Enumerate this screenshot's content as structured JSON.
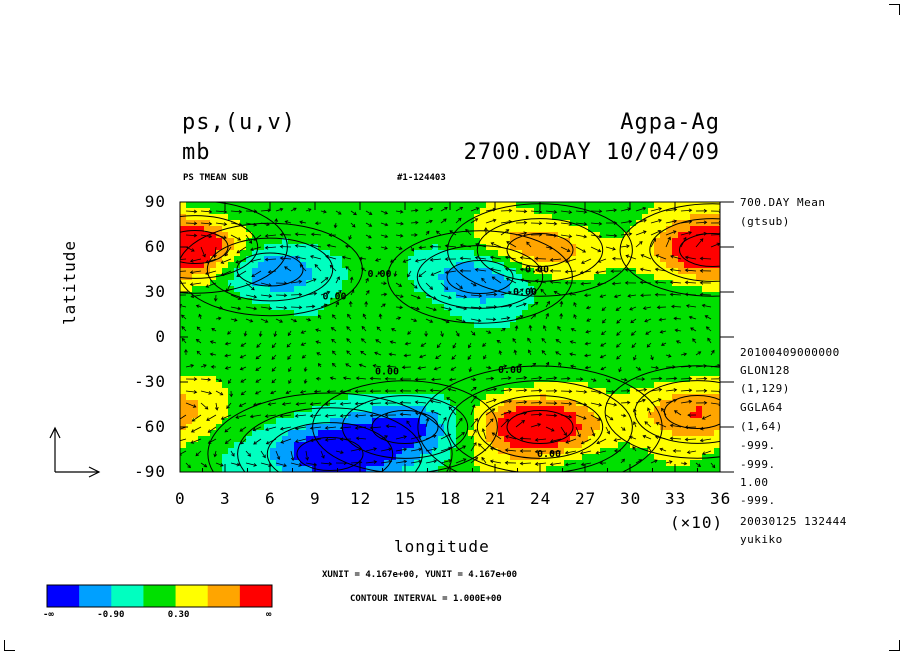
{
  "header": {
    "variable": "ps,(u,v)",
    "unit": "mb",
    "experiment": "Agpa-Ag",
    "time": "2700.0DAY 10/04/09",
    "subtitle": "PS TMEAN SUB",
    "run_id": "#1-124403"
  },
  "side_info": {
    "mean_label": "700.DAY Mean",
    "source": "(gtsub)",
    "date": "20100409000000",
    "xgrid": "GLON128",
    "xrange": "(1,129)",
    "ygrid": "GGLA64",
    "yrange": "(1,64)",
    "undef1": "-999.",
    "undef2": "-999.",
    "factor": "1.00",
    "undef3": "-999.",
    "created": "20030125 132444",
    "user": "yukiko"
  },
  "axes": {
    "xlabel": "longitude",
    "ylabel": "latitude",
    "x_multiplier": "(×10)",
    "x_ticks": [
      "0",
      "3",
      "6",
      "9",
      "12",
      "15",
      "18",
      "21",
      "24",
      "27",
      "30",
      "33",
      "36"
    ],
    "y_ticks": [
      "90",
      "60",
      "30",
      "0",
      "-30",
      "-60",
      "-90"
    ]
  },
  "footer": {
    "units_line": "XUNIT = 4.167e+00, YUNIT = 4.167e+00",
    "contour_line": "CONTOUR INTERVAL = 1.000E+00"
  },
  "colorbar": {
    "colors": [
      "#0000ff",
      "#00a0ff",
      "#00ffc0",
      "#00e000",
      "#ffff00",
      "#ffa500",
      "#ff0000"
    ],
    "labels": [
      "-∞",
      "-0.90",
      "0.30",
      "∞"
    ]
  },
  "contour_labels": [
    "0.00",
    "0.00",
    "0.00",
    "0.00",
    "0.00",
    "0.00",
    "0.00"
  ],
  "chart_data": {
    "type": "heatmap",
    "title": "ps,(u,v)",
    "xlabel": "longitude",
    "ylabel": "latitude",
    "xlim": [
      0,
      360
    ],
    "ylim": [
      -90,
      90
    ],
    "x_tick_values": [
      0,
      30,
      60,
      90,
      120,
      150,
      180,
      210,
      240,
      270,
      300,
      330,
      360
    ],
    "y_tick_values": [
      90,
      60,
      30,
      0,
      -30,
      -60,
      -90
    ],
    "color_levels": [
      -0.9,
      -0.3,
      0.3,
      0.9
    ],
    "contour_interval": 1.0,
    "features": [
      {
        "kind": "high",
        "lon": 10,
        "lat": 60,
        "level": 1.5
      },
      {
        "kind": "high",
        "lon": 240,
        "lat": 58,
        "level": 1.5
      },
      {
        "kind": "high",
        "lon": 355,
        "lat": 58,
        "level": 1.5
      },
      {
        "kind": "high",
        "lon": 240,
        "lat": -60,
        "level": 2.5
      },
      {
        "kind": "high",
        "lon": 345,
        "lat": -50,
        "level": 1.5
      },
      {
        "kind": "low",
        "lon": 60,
        "lat": 45,
        "level": -1.5
      },
      {
        "kind": "low",
        "lon": 200,
        "lat": 40,
        "level": -1.5
      },
      {
        "kind": "low",
        "lon": 150,
        "lat": -60,
        "level": -1.5
      },
      {
        "kind": "low",
        "lon": 100,
        "lat": -78,
        "level": -2.5
      }
    ]
  }
}
